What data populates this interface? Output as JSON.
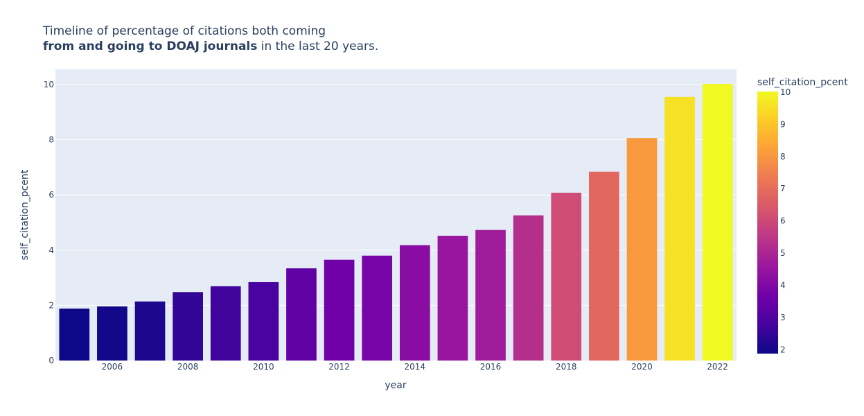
{
  "chart_data": {
    "type": "bar",
    "title_line1": "Timeline of percentage of citations both coming",
    "title_line2_bold": "from and going to DOAJ journals",
    "title_line2_rest": " in the last 20 years.",
    "xlabel": "year",
    "ylabel": "self_citation_pcent",
    "colorbar_title": "self_citation_pcent",
    "x": [
      2005,
      2006,
      2007,
      2008,
      2009,
      2010,
      2011,
      2012,
      2013,
      2014,
      2015,
      2016,
      2017,
      2018,
      2019,
      2020,
      2021,
      2022
    ],
    "values": [
      1.88,
      1.96,
      2.14,
      2.48,
      2.69,
      2.84,
      3.34,
      3.65,
      3.8,
      4.18,
      4.52,
      4.73,
      5.26,
      6.08,
      6.84,
      8.06,
      9.55,
      10.02
    ],
    "ylim": [
      0,
      10.55
    ],
    "yticks": [
      "0",
      "2",
      "4",
      "6",
      "8",
      "10"
    ],
    "xticks": [
      "2006",
      "2008",
      "2010",
      "2012",
      "2014",
      "2016",
      "2018",
      "2020",
      "2022"
    ],
    "colorbar_ticks": [
      "2",
      "3",
      "4",
      "5",
      "6",
      "7",
      "8",
      "9",
      "10"
    ],
    "colorscale": [
      "#0d0887",
      "#46039f",
      "#7201a8",
      "#9c179e",
      "#bd3786",
      "#d8576b",
      "#ed7953",
      "#fb9f3a",
      "#fdca26",
      "#f0f921"
    ],
    "plot_bg": "#e5ecf6",
    "grid": true
  }
}
